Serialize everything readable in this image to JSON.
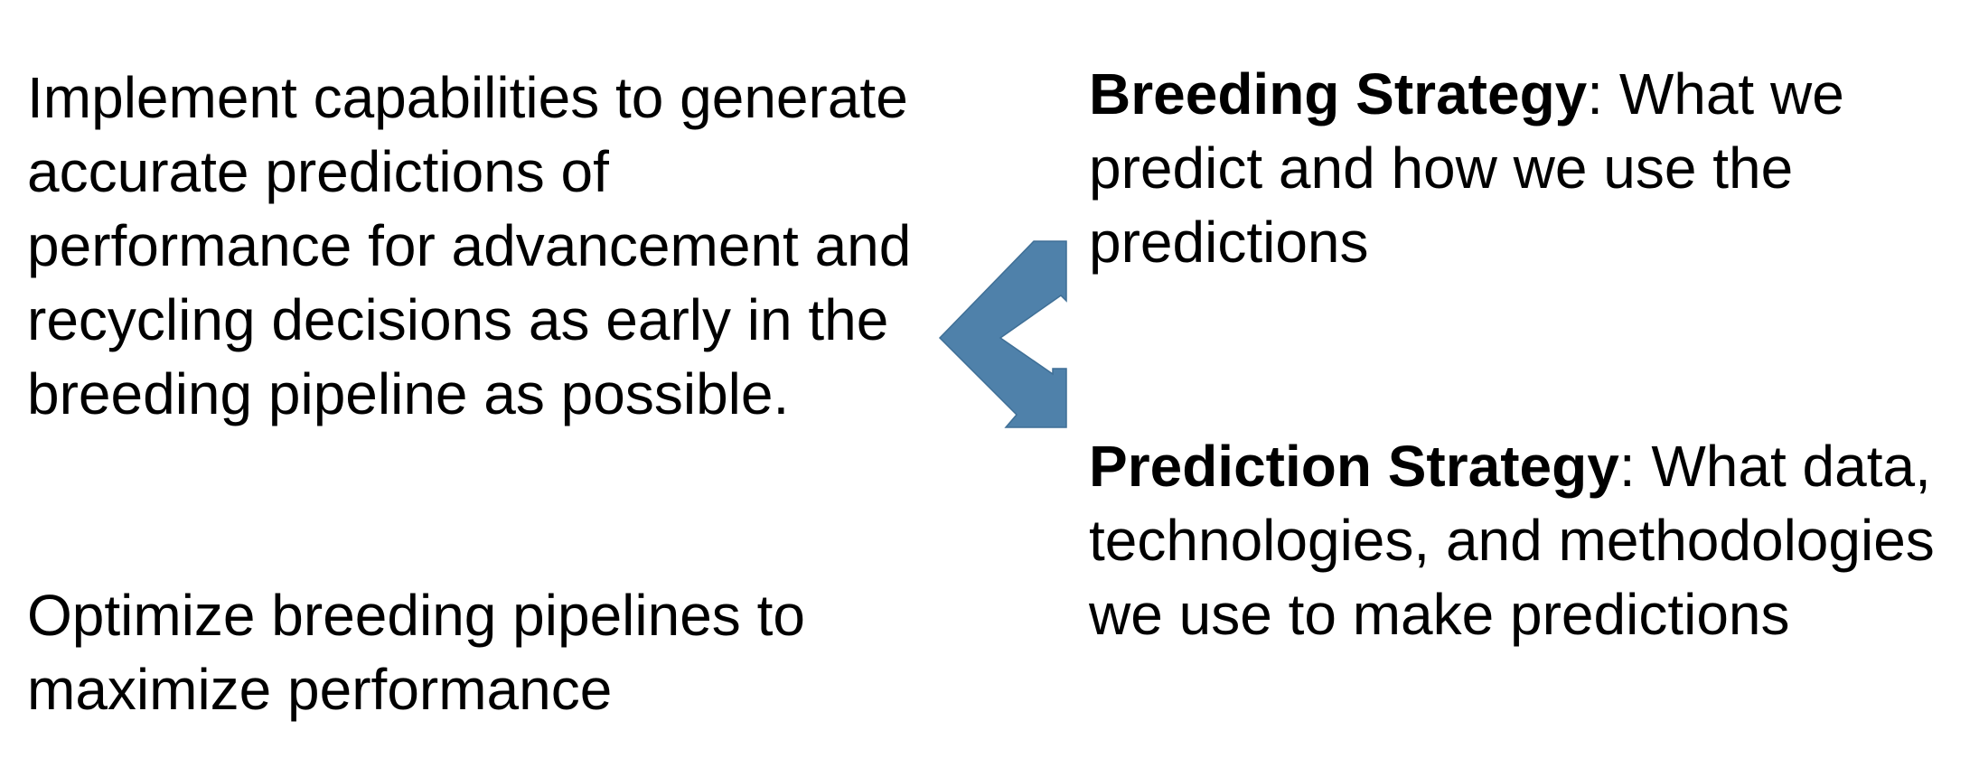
{
  "left": {
    "goal_1": "Implement capabilities to generate accurate predictions of performance for advancement and recycling decisions as early in the breeding pipeline as possible.",
    "goal_2": "Optimize breeding pipelines to maximize performance"
  },
  "right": {
    "breeding": {
      "title": "Breeding Strategy",
      "text": ": What we predict and how we use the predictions"
    },
    "prediction": {
      "title": "Prediction Strategy",
      "text": ": What data, technologies, and methodologies we use to make predictions"
    }
  },
  "colors": {
    "arrow_fill": "#4f81aa",
    "arrow_stroke": "#3f6f96",
    "text": "#000000"
  },
  "icons": {
    "arrow": "double-headed-chevron-arrow"
  }
}
